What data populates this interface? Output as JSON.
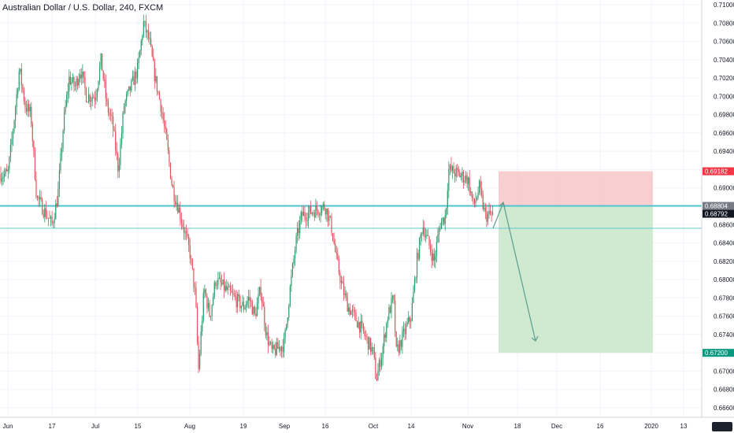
{
  "title": "Australian Dollar / U.S. Dollar, 240, FXCM",
  "colors": {
    "up": "#2e9b6e",
    "down": "#e0525b",
    "grid": "#f0f3fa",
    "axis_text": "#131722",
    "hline": "#4fc3d0",
    "stop_zone": "#f7c6c8",
    "target_zone": "#c8e6c9",
    "arrow": "#5a9e8c"
  },
  "chart_data": {
    "type": "candlestick",
    "title": "Australian Dollar / U.S. Dollar, 240, FXCM",
    "ylim": [
      0.6655,
      0.711
    ],
    "y_ticks": [
      "0.71000",
      "0.70800",
      "0.70600",
      "0.70400",
      "0.70200",
      "0.70000",
      "0.69800",
      "0.69600",
      "0.69400",
      "0.69200",
      "0.69000",
      "0.68800",
      "0.68600",
      "0.68400",
      "0.68200",
      "0.68000",
      "0.67800",
      "0.67600",
      "0.67400",
      "0.67200",
      "0.67000",
      "0.66800",
      "0.66600"
    ],
    "x_ticks": [
      "Jun",
      "17",
      "Jul",
      "15",
      "Aug",
      "19",
      "Sep",
      "16",
      "Oct",
      "14",
      "Nov",
      "18",
      "Dec",
      "16",
      "2020",
      "13"
    ],
    "grid": true,
    "price_path": [
      [
        "Jun",
        0.6915
      ],
      [
        "Jun+2",
        0.697
      ],
      [
        "Jun+4",
        0.703
      ],
      [
        "Jun+6",
        0.699
      ],
      [
        "Jun+8",
        0.698
      ],
      [
        "Jun+10",
        0.689
      ],
      [
        "17",
        0.686
      ],
      [
        "17+2",
        0.689
      ],
      [
        "17+4",
        0.697
      ],
      [
        "17+6",
        0.702
      ],
      [
        "17+8",
        0.701
      ],
      [
        "17+10",
        0.703
      ],
      [
        "17+12",
        0.7
      ],
      [
        "Jul",
        0.7
      ],
      [
        "Jul+2",
        0.704
      ],
      [
        "Jul+4",
        0.699
      ],
      [
        "Jul+6",
        0.697
      ],
      [
        "Jul+8",
        0.692
      ],
      [
        "Jul+10",
        0.699
      ],
      [
        "15",
        0.703
      ],
      [
        "15+2",
        0.708
      ],
      [
        "15+4",
        0.706
      ],
      [
        "15+6",
        0.702
      ],
      [
        "15+8",
        0.699
      ],
      [
        "15+10",
        0.695
      ],
      [
        "15+12",
        0.69
      ],
      [
        "15+14",
        0.688
      ],
      [
        "Aug",
        0.683
      ],
      [
        "Aug+2",
        0.678
      ],
      [
        "Aug+3",
        0.67
      ],
      [
        "Aug+5",
        0.679
      ],
      [
        "Aug+7",
        0.676
      ],
      [
        "Aug+9",
        0.68
      ],
      [
        "19",
        0.677
      ],
      [
        "19+2",
        0.678
      ],
      [
        "19+4",
        0.676
      ],
      [
        "19+6",
        0.679
      ],
      [
        "19+8",
        0.674
      ],
      [
        "19+10",
        0.672
      ],
      [
        "Sep",
        0.673
      ],
      [
        "Sep+2",
        0.679
      ],
      [
        "Sep+4",
        0.684
      ],
      [
        "Sep+6",
        0.687
      ],
      [
        "16",
        0.688
      ],
      [
        "16+2",
        0.686
      ],
      [
        "16+4",
        0.682
      ],
      [
        "16+6",
        0.679
      ],
      [
        "16+8",
        0.677
      ],
      [
        "16+10",
        0.676
      ],
      [
        "16+12",
        0.675
      ],
      [
        "Oct",
        0.672
      ],
      [
        "Oct+1",
        0.669
      ],
      [
        "Oct+3",
        0.672
      ],
      [
        "Oct+5",
        0.676
      ],
      [
        "Oct+7",
        0.678
      ],
      [
        "Oct+8",
        0.672
      ],
      [
        "14",
        0.676
      ],
      [
        "14+2",
        0.682
      ],
      [
        "14+4",
        0.686
      ],
      [
        "14+6",
        0.684
      ],
      [
        "14+8",
        0.682
      ],
      [
        "14+10",
        0.686
      ],
      [
        "14+12",
        0.687
      ],
      [
        "14+13",
        0.692
      ],
      [
        "Nov",
        0.691
      ],
      [
        "Nov+2",
        0.688
      ],
      [
        "Nov+4",
        0.69
      ],
      [
        "Nov+6",
        0.687
      ]
    ],
    "horizontal_lines": [
      {
        "value": 0.68804,
        "style": "thick"
      },
      {
        "value": 0.6856,
        "style": "thin"
      }
    ],
    "position": {
      "entry": 0.68804,
      "stop": 0.69182,
      "target": 0.672
    },
    "price_tags": [
      {
        "label": "0.69182",
        "value": 0.69182,
        "color": "#f23645"
      },
      {
        "label": "0.68804",
        "value": 0.68804,
        "color": "#787b86"
      },
      {
        "label": "0.68792",
        "value": 0.68792,
        "color": "#131722"
      },
      {
        "label": "0.67200",
        "value": 0.672,
        "color": "#089981"
      }
    ]
  }
}
